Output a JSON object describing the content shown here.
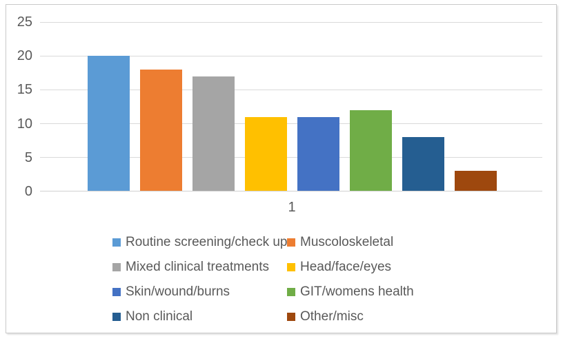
{
  "chart_data": {
    "type": "bar",
    "title": "",
    "xlabel": "",
    "ylabel": "",
    "categories": [
      "1"
    ],
    "series": [
      {
        "name": "Routine screening/check up",
        "values": [
          20
        ],
        "color": "#5B9BD5"
      },
      {
        "name": "Muscoloskeletal",
        "values": [
          18
        ],
        "color": "#ED7D31"
      },
      {
        "name": "Mixed clinical treatments",
        "values": [
          17
        ],
        "color": "#A5A5A5"
      },
      {
        "name": "Head/face/eyes",
        "values": [
          11
        ],
        "color": "#FFC000"
      },
      {
        "name": "Skin/wound/burns",
        "values": [
          11
        ],
        "color": "#4472C4"
      },
      {
        "name": "GIT/womens health",
        "values": [
          12
        ],
        "color": "#70AD47"
      },
      {
        "name": "Non clinical",
        "values": [
          8
        ],
        "color": "#255E91"
      },
      {
        "name": "Other/misc",
        "values": [
          3
        ],
        "color": "#9E480E"
      }
    ],
    "ylim": [
      0,
      25
    ],
    "yticks": [
      0,
      5,
      10,
      15,
      20,
      25
    ],
    "grid": true,
    "gridline_color": "#D9D9D9",
    "axis_text_color": "#595959",
    "legend_position": "bottom"
  }
}
